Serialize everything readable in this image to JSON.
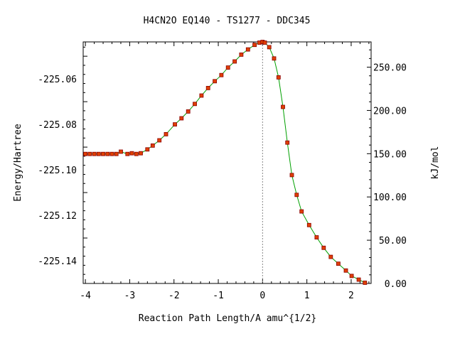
{
  "chart_data": {
    "type": "line",
    "title": "H4CN2O   EQ140 - TS1277 - DDC345",
    "xlabel": "Reaction Path Length/A amu^{1/2}",
    "ylabel": "Energy/Hartree",
    "y2label": "kJ/mol",
    "xlim": [
      -4.05,
      2.45
    ],
    "ylim": [
      -225.15,
      -225.0437
    ],
    "y2lim": [
      0.0,
      279.2
    ],
    "x_ticks": [
      {
        "v": -4,
        "label": "-4"
      },
      {
        "v": -3,
        "label": "-3"
      },
      {
        "v": -2,
        "label": "-2"
      },
      {
        "v": -1,
        "label": "-1"
      },
      {
        "v": 0,
        "label": "0"
      },
      {
        "v": 1,
        "label": "1"
      },
      {
        "v": 2,
        "label": "2"
      }
    ],
    "y_ticks": [
      {
        "v": -225.06,
        "label": "-225.06"
      },
      {
        "v": -225.08,
        "label": "-225.08"
      },
      {
        "v": -225.1,
        "label": "-225.10"
      },
      {
        "v": -225.12,
        "label": "-225.12"
      },
      {
        "v": -225.14,
        "label": "-225.14"
      }
    ],
    "y2_ticks": [
      {
        "v": 250,
        "label": "250.00"
      },
      {
        "v": 200,
        "label": "200.00"
      },
      {
        "v": 150,
        "label": "150.00"
      },
      {
        "v": 100,
        "label": "100.00"
      },
      {
        "v": 50,
        "label": "50.00"
      },
      {
        "v": 0,
        "label": "0.00"
      }
    ],
    "ts_x": 0.0,
    "line_color": "#00a000",
    "marker_color": "#e04000",
    "marker_edge_color": "#8b0000",
    "ts_line_color": "#888888",
    "series": [
      {
        "x": [
          -4.0,
          -3.9,
          -3.8,
          -3.7,
          -3.6,
          -3.5,
          -3.4,
          -3.3,
          -3.2,
          -3.05,
          -2.95,
          -2.85,
          -2.75,
          -2.6,
          -2.48,
          -2.33,
          -2.18,
          -1.98,
          -1.83,
          -1.68,
          -1.53,
          -1.38,
          -1.23,
          -1.08,
          -0.93,
          -0.78,
          -0.63,
          -0.48,
          -0.33,
          -0.18,
          -0.07,
          0.0,
          0.05,
          0.15,
          0.26,
          0.36,
          0.46,
          0.56,
          0.66,
          0.77,
          0.88,
          1.05,
          1.22,
          1.38,
          1.54,
          1.71,
          1.88,
          2.01,
          2.17,
          2.31
        ],
        "y": [
          -225.093,
          -225.093,
          -225.093,
          -225.093,
          -225.093,
          -225.093,
          -225.093,
          -225.093,
          -225.092,
          -225.093,
          -225.0927,
          -225.093,
          -225.0927,
          -225.091,
          -225.0893,
          -225.087,
          -225.0843,
          -225.08,
          -225.0773,
          -225.0743,
          -225.071,
          -225.0673,
          -225.064,
          -225.061,
          -225.0583,
          -225.055,
          -225.0523,
          -225.0493,
          -225.047,
          -225.045,
          -225.044,
          -225.0437,
          -225.044,
          -225.046,
          -225.051,
          -225.0593,
          -225.0723,
          -225.088,
          -225.1023,
          -225.111,
          -225.1183,
          -225.1243,
          -225.1297,
          -225.1343,
          -225.1383,
          -225.1413,
          -225.1443,
          -225.1467,
          -225.1483,
          -225.1497
        ]
      }
    ]
  }
}
